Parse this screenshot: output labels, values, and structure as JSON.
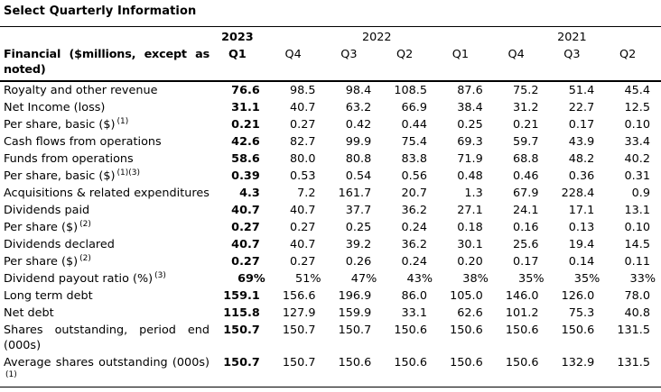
{
  "title": "Select Quarterly Information",
  "table": {
    "label_header": "Financial ($millions, except as noted)",
    "year_groups": [
      {
        "label": "2023",
        "span": 1,
        "bold": true
      },
      {
        "label": "2022",
        "span": 4,
        "bold": false
      },
      {
        "label": "2021",
        "span": 3,
        "bold": false
      }
    ],
    "quarter_headers": [
      "Q1",
      "Q4",
      "Q3",
      "Q2",
      "Q1",
      "Q4",
      "Q3",
      "Q2"
    ],
    "rows": [
      {
        "label": "Royalty and other revenue",
        "sup": "",
        "values": [
          "76.6",
          "98.5",
          "98.4",
          "108.5",
          "87.6",
          "75.2",
          "51.4",
          "45.4"
        ]
      },
      {
        "label": "Net Income (loss)",
        "sup": "",
        "values": [
          "31.1",
          "40.7",
          "63.2",
          "66.9",
          "38.4",
          "31.2",
          "22.7",
          "12.5"
        ]
      },
      {
        "label": "Per share, basic ($)",
        "sup": "(1)",
        "values": [
          "0.21",
          "0.27",
          "0.42",
          "0.44",
          "0.25",
          "0.21",
          "0.17",
          "0.10"
        ]
      },
      {
        "label": "Cash flows from operations",
        "sup": "",
        "values": [
          "42.6",
          "82.7",
          "99.9",
          "75.4",
          "69.3",
          "59.7",
          "43.9",
          "33.4"
        ]
      },
      {
        "label": "Funds from operations",
        "sup": "",
        "values": [
          "58.6",
          "80.0",
          "80.8",
          "83.8",
          "71.9",
          "68.8",
          "48.2",
          "40.2"
        ]
      },
      {
        "label": "Per share, basic ($)",
        "sup": "(1)(3)",
        "values": [
          "0.39",
          "0.53",
          "0.54",
          "0.56",
          "0.48",
          "0.46",
          "0.36",
          "0.31"
        ]
      },
      {
        "label": "Acquisitions & related expenditures",
        "sup": "",
        "values": [
          "4.3",
          "7.2",
          "161.7",
          "20.7",
          "1.3",
          "67.9",
          "228.4",
          "0.9"
        ]
      },
      {
        "label": "Dividends paid",
        "sup": "",
        "values": [
          "40.7",
          "40.7",
          "37.7",
          "36.2",
          "27.1",
          "24.1",
          "17.1",
          "13.1"
        ]
      },
      {
        "label": "Per share ($)",
        "sup": "(2)",
        "values": [
          "0.27",
          "0.27",
          "0.25",
          "0.24",
          "0.18",
          "0.16",
          "0.13",
          "0.10"
        ]
      },
      {
        "label": "Dividends declared",
        "sup": "",
        "values": [
          "40.7",
          "40.7",
          "39.2",
          "36.2",
          "30.1",
          "25.6",
          "19.4",
          "14.5"
        ]
      },
      {
        "label": "Per share ($)",
        "sup": "(2)",
        "values": [
          "0.27",
          "0.27",
          "0.26",
          "0.24",
          "0.20",
          "0.17",
          "0.14",
          "0.11"
        ]
      },
      {
        "label": "Dividend payout ratio (%)",
        "sup": "(3)",
        "values": [
          "69%",
          "51%",
          "47%",
          "43%",
          "38%",
          "35%",
          "35%",
          "33%"
        ]
      },
      {
        "label": "Long term debt",
        "sup": "",
        "values": [
          "159.1",
          "156.6",
          "196.9",
          "86.0",
          "105.0",
          "146.0",
          "126.0",
          "78.0"
        ]
      },
      {
        "label": "Net debt",
        "sup": "",
        "values": [
          "115.8",
          "127.9",
          "159.9",
          "33.1",
          "62.6",
          "101.2",
          "75.3",
          "40.8"
        ]
      },
      {
        "label": "Shares outstanding, period end (000s)",
        "sup": "",
        "values": [
          "150.7",
          "150.7",
          "150.7",
          "150.6",
          "150.6",
          "150.6",
          "150.6",
          "131.5"
        ]
      },
      {
        "label": "Average shares outstanding (000s)",
        "sup": "(1)",
        "values": [
          "150.7",
          "150.7",
          "150.6",
          "150.6",
          "150.6",
          "150.6",
          "132.9",
          "131.5"
        ]
      }
    ]
  }
}
